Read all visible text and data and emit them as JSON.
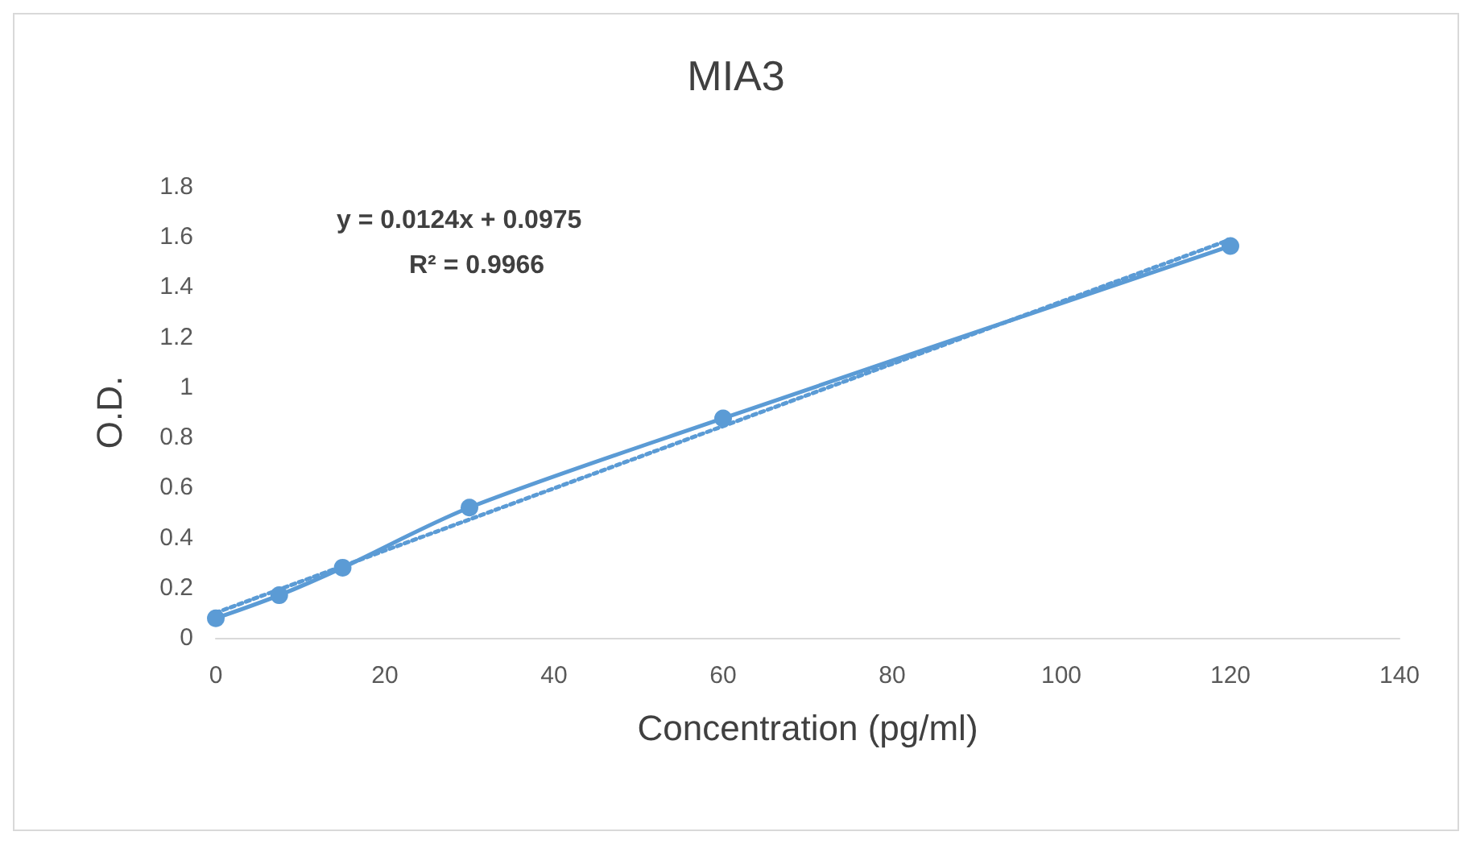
{
  "chart_data": {
    "type": "line",
    "title": "MIA3",
    "xlabel": "Concentration (pg/ml)",
    "ylabel": "O.D.",
    "x": [
      0,
      7.5,
      15,
      30,
      60,
      120
    ],
    "series": [
      {
        "color": "#5b9bd5",
        "values": [
          0.078,
          0.17,
          0.28,
          0.52,
          0.876,
          1.564
        ],
        "marker": "circle",
        "line_style": "solid"
      },
      {
        "type": "line",
        "color": "#5b9bd5",
        "x": [
          0,
          120
        ],
        "values": [
          0.1,
          1.59
        ],
        "marker": "none",
        "line_style": "dotted"
      }
    ],
    "annotations": [
      "y = 0.0124x + 0.0975",
      "R² = 0.9966"
    ],
    "xlim": [
      0,
      140
    ],
    "xticks": [
      0,
      20,
      40,
      60,
      80,
      100,
      120,
      140
    ],
    "ylim": [
      0,
      1.8
    ],
    "yticks": [
      0,
      0.2,
      0.4,
      0.6,
      0.8,
      1,
      1.2,
      1.4,
      1.6,
      1.8
    ],
    "grid": false
  }
}
